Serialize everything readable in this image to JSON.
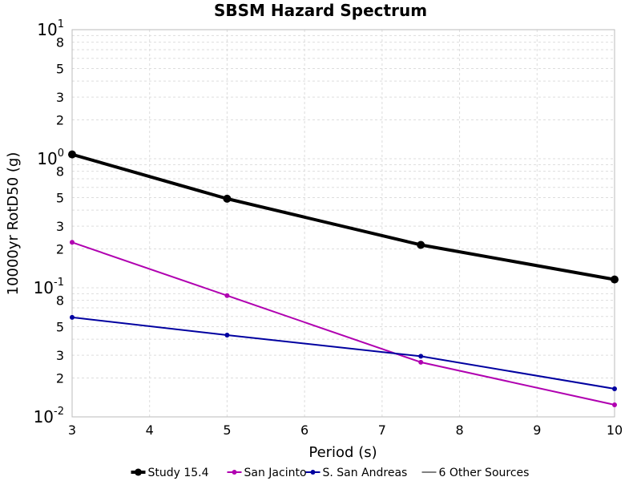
{
  "chart_data": {
    "type": "line",
    "title": "SBSM Hazard Spectrum",
    "xlabel": "Period (s)",
    "ylabel": "10000yr RotD50 (g)",
    "xlim": [
      3,
      10
    ],
    "ylim": [
      0.01,
      10
    ],
    "yscale": "log",
    "grid": true,
    "legend_position": "bottom",
    "x_ticks": [
      "3",
      "4",
      "5",
      "6",
      "7",
      "8",
      "9",
      "10"
    ],
    "y_major_ticks": [
      {
        "base": "10",
        "exp": "-2"
      },
      {
        "base": "10",
        "exp": "-1"
      },
      {
        "base": "10",
        "exp": "0"
      },
      {
        "base": "10",
        "exp": "1"
      }
    ],
    "y_minor_labels": [
      "2",
      "3",
      "5",
      "8"
    ],
    "series": [
      {
        "name": "Study 15.4",
        "color": "#000000",
        "x": [
          3,
          5,
          7.5,
          10
        ],
        "y": [
          1.08,
          0.49,
          0.215,
          0.116
        ]
      },
      {
        "name": "San Jacinto",
        "color": "#b000b0",
        "x": [
          3,
          5,
          7.5,
          10
        ],
        "y": [
          0.225,
          0.087,
          0.0265,
          0.0124
        ]
      },
      {
        "name": "S. San Andreas",
        "color": "#0000a0",
        "x": [
          3,
          5,
          7.5,
          10
        ],
        "y": [
          0.059,
          0.043,
          0.0295,
          0.0165
        ]
      },
      {
        "name": "6 Other Sources",
        "color": "#808080",
        "x": [],
        "y": []
      }
    ]
  }
}
